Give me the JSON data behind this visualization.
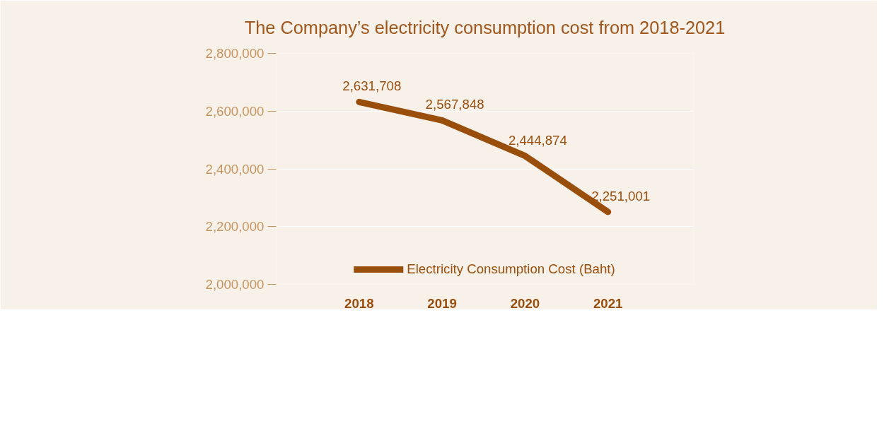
{
  "chart_data": {
    "type": "line",
    "title": "The Company’s electricity consumption cost from 2018-2021",
    "categories": [
      "2018",
      "2019",
      "2020",
      "2021"
    ],
    "series": [
      {
        "name": "Electricity Consumption Cost (Baht)",
        "color": "#9a4e0c",
        "values": [
          2631708,
          2567848,
          2444874,
          2251001
        ],
        "value_labels": [
          "2,631,708",
          "2,567,848",
          "2,444,874",
          "2,251,001"
        ]
      }
    ],
    "ylim": [
      2000000,
      2800000
    ],
    "yticks": [
      {
        "value": 2000000,
        "label": "2,000,000"
      },
      {
        "value": 2200000,
        "label": "2,200,000"
      },
      {
        "value": 2400000,
        "label": "2,400,000"
      },
      {
        "value": 2600000,
        "label": "2,600,000"
      },
      {
        "value": 2800000,
        "label": "2,800,000"
      }
    ],
    "grid": "y",
    "legend": "bottom",
    "marker": "none",
    "line_style": "solid"
  }
}
